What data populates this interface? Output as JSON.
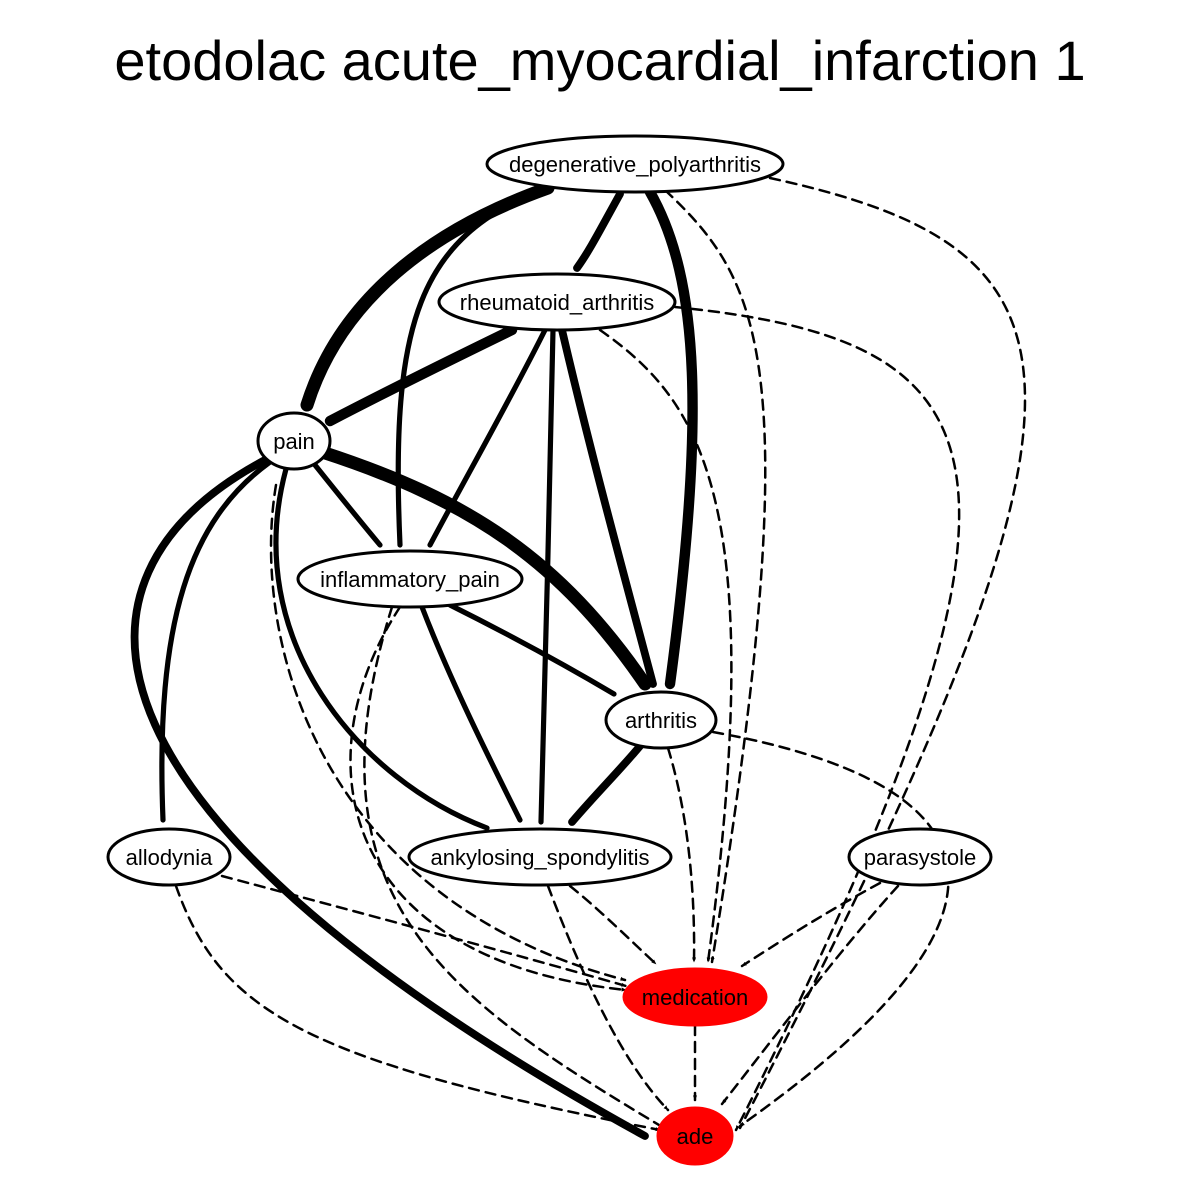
{
  "title": "etodolac acute_myocardial_infarction 1",
  "colors": {
    "highlight": "#ff0000",
    "stroke": "#000000",
    "background": "#ffffff"
  },
  "nodes": [
    {
      "id": "degenerative_polyarthritis",
      "label": "degenerative_polyarthritis",
      "highlight": false
    },
    {
      "id": "rheumatoid_arthritis",
      "label": "rheumatoid_arthritis",
      "highlight": false
    },
    {
      "id": "pain",
      "label": "pain",
      "highlight": false
    },
    {
      "id": "inflammatory_pain",
      "label": "inflammatory_pain",
      "highlight": false
    },
    {
      "id": "arthritis",
      "label": "arthritis",
      "highlight": false
    },
    {
      "id": "allodynia",
      "label": "allodynia",
      "highlight": false
    },
    {
      "id": "ankylosing_spondylitis",
      "label": "ankylosing_spondylitis",
      "highlight": false
    },
    {
      "id": "parasystole",
      "label": "parasystole",
      "highlight": false
    },
    {
      "id": "medication",
      "label": "medication",
      "highlight": true
    },
    {
      "id": "ade",
      "label": "ade",
      "highlight": true
    }
  ],
  "edges": [
    {
      "from": "degenerative_polyarthritis",
      "to": "pain",
      "style": "solid",
      "weight": 5
    },
    {
      "from": "degenerative_polyarthritis",
      "to": "rheumatoid_arthritis",
      "style": "solid",
      "weight": 3
    },
    {
      "from": "degenerative_polyarthritis",
      "to": "inflammatory_pain",
      "style": "solid",
      "weight": 2
    },
    {
      "from": "degenerative_polyarthritis",
      "to": "arthritis",
      "style": "solid",
      "weight": 4
    },
    {
      "from": "degenerative_polyarthritis",
      "to": "medication",
      "style": "dashed",
      "weight": 1
    },
    {
      "from": "degenerative_polyarthritis",
      "to": "ade",
      "style": "dashed",
      "weight": 1
    },
    {
      "from": "rheumatoid_arthritis",
      "to": "pain",
      "style": "solid",
      "weight": 4
    },
    {
      "from": "rheumatoid_arthritis",
      "to": "inflammatory_pain",
      "style": "solid",
      "weight": 2
    },
    {
      "from": "rheumatoid_arthritis",
      "to": "ankylosing_spondylitis",
      "style": "solid",
      "weight": 2
    },
    {
      "from": "rheumatoid_arthritis",
      "to": "arthritis",
      "style": "solid",
      "weight": 3
    },
    {
      "from": "rheumatoid_arthritis",
      "to": "medication",
      "style": "dashed",
      "weight": 1
    },
    {
      "from": "rheumatoid_arthritis",
      "to": "ade",
      "style": "dashed",
      "weight": 1
    },
    {
      "from": "pain",
      "to": "inflammatory_pain",
      "style": "solid",
      "weight": 2
    },
    {
      "from": "pain",
      "to": "arthritis",
      "style": "solid",
      "weight": 5
    },
    {
      "from": "pain",
      "to": "allodynia",
      "style": "solid",
      "weight": 2
    },
    {
      "from": "pain",
      "to": "ankylosing_spondylitis",
      "style": "solid",
      "weight": 2
    },
    {
      "from": "pain",
      "to": "ade",
      "style": "solid",
      "weight": 3
    },
    {
      "from": "pain",
      "to": "medication",
      "style": "dashed",
      "weight": 1
    },
    {
      "from": "inflammatory_pain",
      "to": "arthritis",
      "style": "solid",
      "weight": 2
    },
    {
      "from": "inflammatory_pain",
      "to": "ankylosing_spondylitis",
      "style": "solid",
      "weight": 2
    },
    {
      "from": "inflammatory_pain",
      "to": "medication",
      "style": "dashed",
      "weight": 1
    },
    {
      "from": "inflammatory_pain",
      "to": "ade",
      "style": "dashed",
      "weight": 1
    },
    {
      "from": "arthritis",
      "to": "ankylosing_spondylitis",
      "style": "solid",
      "weight": 3
    },
    {
      "from": "arthritis",
      "to": "medication",
      "style": "dashed",
      "weight": 1
    },
    {
      "from": "arthritis",
      "to": "ade",
      "style": "dashed",
      "weight": 1
    },
    {
      "from": "allodynia",
      "to": "medication",
      "style": "dashed",
      "weight": 1
    },
    {
      "from": "allodynia",
      "to": "ade",
      "style": "dashed",
      "weight": 1
    },
    {
      "from": "ankylosing_spondylitis",
      "to": "medication",
      "style": "dashed",
      "weight": 1
    },
    {
      "from": "ankylosing_spondylitis",
      "to": "ade",
      "style": "dashed",
      "weight": 1
    },
    {
      "from": "parasystole",
      "to": "medication",
      "style": "dashed",
      "weight": 1
    },
    {
      "from": "parasystole",
      "to": "ade",
      "style": "dashed",
      "weight": 1
    },
    {
      "from": "medication",
      "to": "ade",
      "style": "dashed",
      "weight": 1
    }
  ]
}
